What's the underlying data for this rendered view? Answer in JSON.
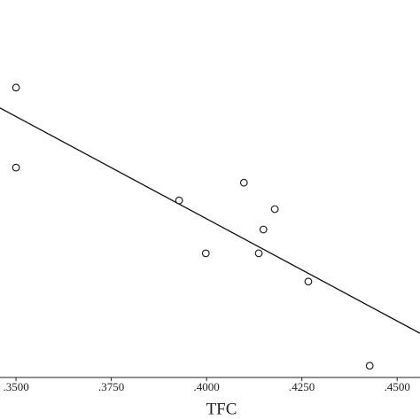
{
  "chart_data": {
    "type": "scatter",
    "x_label": "TFC",
    "xlim": [
      0.3458,
      0.456
    ],
    "ylim": [
      0,
      100
    ],
    "xticks": [
      {
        "value": 0.35,
        "label": ".3500"
      },
      {
        "value": 0.375,
        "label": ".3750"
      },
      {
        "value": 0.4,
        "label": ".4000"
      },
      {
        "value": 0.425,
        "label": ".4250"
      },
      {
        "value": 0.45,
        "label": ".4500"
      }
    ],
    "series": [
      {
        "color": "#222222",
        "x": [
          0.35,
          0.35,
          0.3928,
          0.3998,
          0.4098,
          0.4149,
          0.4137,
          0.4179,
          0.4267,
          0.4428
        ],
        "values": [
          76.8,
          55.6,
          46.9,
          32.9,
          51.6,
          39.2,
          32.9,
          44.6,
          25.4,
          3.1
        ]
      }
    ],
    "fit_line": {
      "color": "#111111",
      "x": [
        0.3458,
        0.456
      ],
      "values": [
        71.4,
        11.7
      ]
    }
  }
}
